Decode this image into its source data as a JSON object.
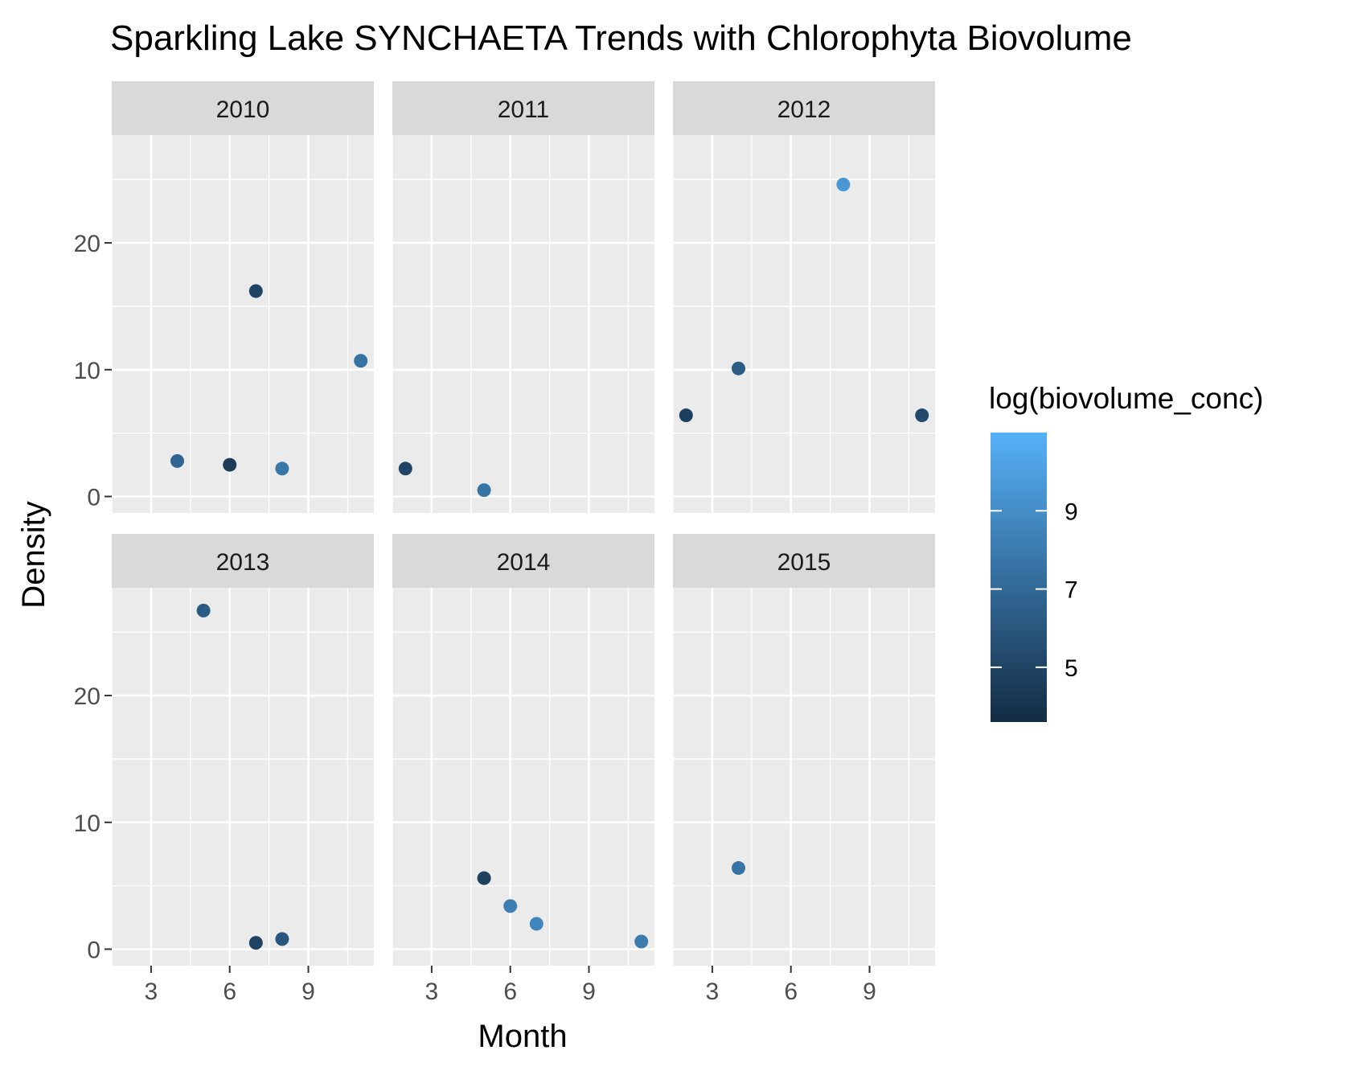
{
  "chart_data": {
    "type": "scatter",
    "title": "Sparkling Lake SYNCHAETA Trends with Chlorophyta Biovolume",
    "xlabel": "Month",
    "ylabel": "Density",
    "xlim": [
      1.5,
      11.5
    ],
    "ylim": [
      -1.3,
      28.5
    ],
    "x_ticks": [
      3,
      6,
      9
    ],
    "y_ticks": [
      0,
      10,
      20
    ],
    "grid": true,
    "legend": {
      "title": "log(biovolume_conc)",
      "position": "right",
      "ticks": [
        5,
        7,
        9
      ],
      "range": [
        3.6,
        11.0
      ],
      "color_low": "#132B43",
      "color_high": "#56B1F7"
    },
    "panels": [
      {
        "label": "2010",
        "points": [
          {
            "x": 4,
            "y": 2.8,
            "c": 6.8
          },
          {
            "x": 6,
            "y": 2.5,
            "c": 4.5
          },
          {
            "x": 7,
            "y": 16.2,
            "c": 5.0
          },
          {
            "x": 8,
            "y": 2.2,
            "c": 7.8
          },
          {
            "x": 11,
            "y": 10.7,
            "c": 7.5
          }
        ]
      },
      {
        "label": "2011",
        "points": [
          {
            "x": 2,
            "y": 2.2,
            "c": 5.0
          },
          {
            "x": 5,
            "y": 0.5,
            "c": 7.7
          }
        ]
      },
      {
        "label": "2012",
        "points": [
          {
            "x": 2,
            "y": 6.4,
            "c": 4.7
          },
          {
            "x": 4,
            "y": 10.1,
            "c": 6.3
          },
          {
            "x": 8,
            "y": 24.6,
            "c": 9.6
          },
          {
            "x": 11,
            "y": 6.4,
            "c": 5.3
          }
        ]
      },
      {
        "label": "2013",
        "points": [
          {
            "x": 5,
            "y": 26.7,
            "c": 6.2
          },
          {
            "x": 7,
            "y": 0.5,
            "c": 4.9
          },
          {
            "x": 8,
            "y": 0.8,
            "c": 6.0
          }
        ]
      },
      {
        "label": "2014",
        "points": [
          {
            "x": 5,
            "y": 5.6,
            "c": 4.8
          },
          {
            "x": 6,
            "y": 3.4,
            "c": 8.2
          },
          {
            "x": 7,
            "y": 2.0,
            "c": 8.6
          },
          {
            "x": 11,
            "y": 0.6,
            "c": 8.0
          }
        ]
      },
      {
        "label": "2015",
        "points": [
          {
            "x": 4,
            "y": 6.4,
            "c": 7.6
          }
        ]
      }
    ]
  }
}
